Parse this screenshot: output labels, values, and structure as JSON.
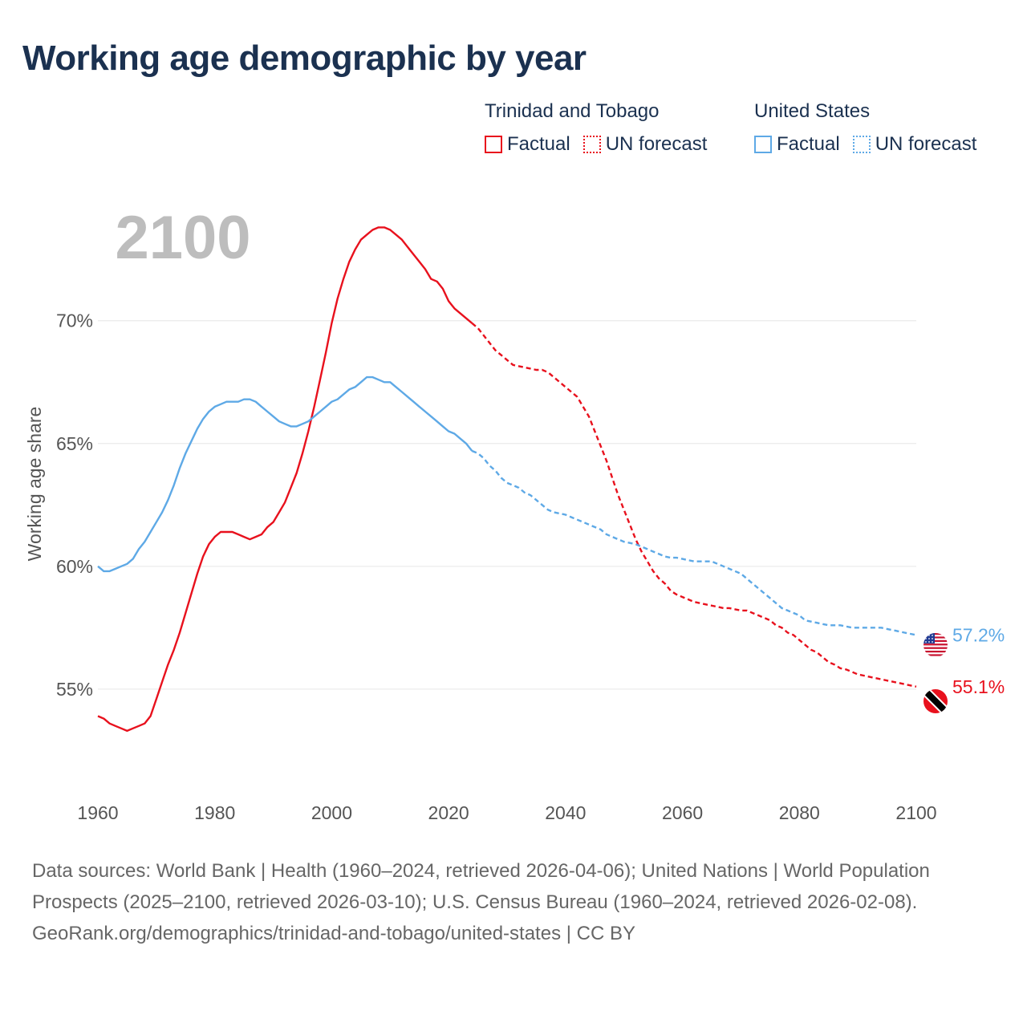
{
  "title": "Working age demographic by year",
  "legend": {
    "groups": [
      {
        "country": "Trinidad and Tobago",
        "color": "#e8111d",
        "factual_label": "Factual",
        "forecast_label": "UN forecast"
      },
      {
        "country": "United States",
        "color": "#5ea9e6",
        "factual_label": "Factual",
        "forecast_label": "UN forecast"
      }
    ]
  },
  "footer": {
    "sources": "Data sources: World Bank | Health (1960–2024, retrieved 2026-04-06); United Nations | World Population Prospects (2025–2100, retrieved 2026-03-10); U.S. Census Bureau (1960–2024, retrieved 2026-02-08).",
    "credit": "GeoRank.org/demographics/trinidad-and-tobago/united-states | CC BY"
  },
  "chart_data": {
    "type": "line",
    "year_watermark": "2100",
    "ylabel": "Working age share",
    "xlim": [
      1960,
      2100
    ],
    "ylim": [
      51.5,
      74.5
    ],
    "xticks": [
      1960,
      1980,
      2000,
      2020,
      2040,
      2060,
      2080,
      2100
    ],
    "xtick_labels": [
      "1960",
      "1980",
      "2000",
      "2020",
      "2040",
      "2060",
      "2080",
      "2100"
    ],
    "yticks": [
      55,
      60,
      65,
      70
    ],
    "ytick_labels": [
      "55%",
      "60%",
      "65%",
      "70%"
    ],
    "forecast_start": 2024,
    "series": [
      {
        "name": "Trinidad and Tobago",
        "color": "#e8111d",
        "end_label": "55.1%",
        "flag": "trinidad-and-tobago-flag",
        "points": [
          [
            1960,
            53.9
          ],
          [
            1961,
            53.8
          ],
          [
            1962,
            53.6
          ],
          [
            1963,
            53.5
          ],
          [
            1964,
            53.4
          ],
          [
            1965,
            53.3
          ],
          [
            1966,
            53.4
          ],
          [
            1967,
            53.5
          ],
          [
            1968,
            53.6
          ],
          [
            1969,
            53.9
          ],
          [
            1970,
            54.6
          ],
          [
            1971,
            55.3
          ],
          [
            1972,
            56.0
          ],
          [
            1973,
            56.6
          ],
          [
            1974,
            57.3
          ],
          [
            1975,
            58.1
          ],
          [
            1976,
            58.9
          ],
          [
            1977,
            59.7
          ],
          [
            1978,
            60.4
          ],
          [
            1979,
            60.9
          ],
          [
            1980,
            61.2
          ],
          [
            1981,
            61.4
          ],
          [
            1982,
            61.4
          ],
          [
            1983,
            61.4
          ],
          [
            1984,
            61.3
          ],
          [
            1985,
            61.2
          ],
          [
            1986,
            61.1
          ],
          [
            1987,
            61.2
          ],
          [
            1988,
            61.3
          ],
          [
            1989,
            61.6
          ],
          [
            1990,
            61.8
          ],
          [
            1991,
            62.2
          ],
          [
            1992,
            62.6
          ],
          [
            1993,
            63.2
          ],
          [
            1994,
            63.8
          ],
          [
            1995,
            64.6
          ],
          [
            1996,
            65.5
          ],
          [
            1997,
            66.5
          ],
          [
            1998,
            67.6
          ],
          [
            1999,
            68.7
          ],
          [
            2000,
            69.9
          ],
          [
            2001,
            70.9
          ],
          [
            2002,
            71.7
          ],
          [
            2003,
            72.4
          ],
          [
            2004,
            72.9
          ],
          [
            2005,
            73.3
          ],
          [
            2006,
            73.5
          ],
          [
            2007,
            73.7
          ],
          [
            2008,
            73.8
          ],
          [
            2009,
            73.8
          ],
          [
            2010,
            73.7
          ],
          [
            2011,
            73.5
          ],
          [
            2012,
            73.3
          ],
          [
            2013,
            73.0
          ],
          [
            2014,
            72.7
          ],
          [
            2015,
            72.4
          ],
          [
            2016,
            72.1
          ],
          [
            2017,
            71.7
          ],
          [
            2018,
            71.6
          ],
          [
            2019,
            71.3
          ],
          [
            2020,
            70.8
          ],
          [
            2021,
            70.5
          ],
          [
            2022,
            70.3
          ],
          [
            2023,
            70.1
          ],
          [
            2024,
            69.9
          ],
          [
            2025,
            69.7
          ],
          [
            2026,
            69.4
          ],
          [
            2027,
            69.1
          ],
          [
            2028,
            68.8
          ],
          [
            2029,
            68.6
          ],
          [
            2030,
            68.4
          ],
          [
            2031,
            68.2
          ],
          [
            2032,
            68.15
          ],
          [
            2033,
            68.1
          ],
          [
            2034,
            68.05
          ],
          [
            2035,
            68.0
          ],
          [
            2036,
            68.0
          ],
          [
            2037,
            67.9
          ],
          [
            2038,
            67.7
          ],
          [
            2039,
            67.5
          ],
          [
            2040,
            67.3
          ],
          [
            2041,
            67.1
          ],
          [
            2042,
            66.9
          ],
          [
            2043,
            66.5
          ],
          [
            2044,
            66.1
          ],
          [
            2045,
            65.5
          ],
          [
            2046,
            64.9
          ],
          [
            2047,
            64.3
          ],
          [
            2048,
            63.6
          ],
          [
            2049,
            62.9
          ],
          [
            2050,
            62.3
          ],
          [
            2051,
            61.7
          ],
          [
            2052,
            61.1
          ],
          [
            2053,
            60.6
          ],
          [
            2054,
            60.2
          ],
          [
            2055,
            59.8
          ],
          [
            2056,
            59.5
          ],
          [
            2057,
            59.3
          ],
          [
            2058,
            59.0
          ],
          [
            2059,
            58.85
          ],
          [
            2060,
            58.75
          ],
          [
            2061,
            58.65
          ],
          [
            2062,
            58.55
          ],
          [
            2063,
            58.5
          ],
          [
            2064,
            58.45
          ],
          [
            2065,
            58.4
          ],
          [
            2066,
            58.35
          ],
          [
            2067,
            58.3
          ],
          [
            2068,
            58.3
          ],
          [
            2069,
            58.25
          ],
          [
            2070,
            58.2
          ],
          [
            2071,
            58.2
          ],
          [
            2072,
            58.1
          ],
          [
            2073,
            58.0
          ],
          [
            2074,
            57.9
          ],
          [
            2075,
            57.8
          ],
          [
            2076,
            57.6
          ],
          [
            2077,
            57.5
          ],
          [
            2078,
            57.3
          ],
          [
            2079,
            57.2
          ],
          [
            2080,
            57.0
          ],
          [
            2081,
            56.8
          ],
          [
            2082,
            56.6
          ],
          [
            2083,
            56.5
          ],
          [
            2084,
            56.3
          ],
          [
            2085,
            56.1
          ],
          [
            2086,
            56.0
          ],
          [
            2087,
            55.85
          ],
          [
            2088,
            55.8
          ],
          [
            2089,
            55.7
          ],
          [
            2090,
            55.6
          ],
          [
            2091,
            55.55
          ],
          [
            2092,
            55.5
          ],
          [
            2093,
            55.45
          ],
          [
            2094,
            55.4
          ],
          [
            2095,
            55.35
          ],
          [
            2096,
            55.3
          ],
          [
            2097,
            55.25
          ],
          [
            2098,
            55.2
          ],
          [
            2099,
            55.15
          ],
          [
            2100,
            55.1
          ]
        ]
      },
      {
        "name": "United States",
        "color": "#5ea9e6",
        "end_label": "57.2%",
        "flag": "united-states-flag",
        "points": [
          [
            1960,
            60.0
          ],
          [
            1961,
            59.8
          ],
          [
            1962,
            59.8
          ],
          [
            1963,
            59.9
          ],
          [
            1964,
            60.0
          ],
          [
            1965,
            60.1
          ],
          [
            1966,
            60.3
          ],
          [
            1967,
            60.7
          ],
          [
            1968,
            61.0
          ],
          [
            1969,
            61.4
          ],
          [
            1970,
            61.8
          ],
          [
            1971,
            62.2
          ],
          [
            1972,
            62.7
          ],
          [
            1973,
            63.3
          ],
          [
            1974,
            64.0
          ],
          [
            1975,
            64.6
          ],
          [
            1976,
            65.1
          ],
          [
            1977,
            65.6
          ],
          [
            1978,
            66.0
          ],
          [
            1979,
            66.3
          ],
          [
            1980,
            66.5
          ],
          [
            1981,
            66.6
          ],
          [
            1982,
            66.7
          ],
          [
            1983,
            66.7
          ],
          [
            1984,
            66.7
          ],
          [
            1985,
            66.8
          ],
          [
            1986,
            66.8
          ],
          [
            1987,
            66.7
          ],
          [
            1988,
            66.5
          ],
          [
            1989,
            66.3
          ],
          [
            1990,
            66.1
          ],
          [
            1991,
            65.9
          ],
          [
            1992,
            65.8
          ],
          [
            1993,
            65.7
          ],
          [
            1994,
            65.7
          ],
          [
            1995,
            65.8
          ],
          [
            1996,
            65.9
          ],
          [
            1997,
            66.1
          ],
          [
            1998,
            66.3
          ],
          [
            1999,
            66.5
          ],
          [
            2000,
            66.7
          ],
          [
            2001,
            66.8
          ],
          [
            2002,
            67.0
          ],
          [
            2003,
            67.2
          ],
          [
            2004,
            67.3
          ],
          [
            2005,
            67.5
          ],
          [
            2006,
            67.7
          ],
          [
            2007,
            67.7
          ],
          [
            2008,
            67.6
          ],
          [
            2009,
            67.5
          ],
          [
            2010,
            67.5
          ],
          [
            2011,
            67.3
          ],
          [
            2012,
            67.1
          ],
          [
            2013,
            66.9
          ],
          [
            2014,
            66.7
          ],
          [
            2015,
            66.5
          ],
          [
            2016,
            66.3
          ],
          [
            2017,
            66.1
          ],
          [
            2018,
            65.9
          ],
          [
            2019,
            65.7
          ],
          [
            2020,
            65.5
          ],
          [
            2021,
            65.4
          ],
          [
            2022,
            65.2
          ],
          [
            2023,
            65.0
          ],
          [
            2024,
            64.7
          ],
          [
            2025,
            64.6
          ],
          [
            2026,
            64.4
          ],
          [
            2027,
            64.1
          ],
          [
            2028,
            63.9
          ],
          [
            2029,
            63.6
          ],
          [
            2030,
            63.4
          ],
          [
            2031,
            63.3
          ],
          [
            2032,
            63.2
          ],
          [
            2033,
            63.0
          ],
          [
            2034,
            62.9
          ],
          [
            2035,
            62.7
          ],
          [
            2036,
            62.5
          ],
          [
            2037,
            62.3
          ],
          [
            2038,
            62.2
          ],
          [
            2039,
            62.15
          ],
          [
            2040,
            62.1
          ],
          [
            2041,
            62.0
          ],
          [
            2042,
            61.9
          ],
          [
            2043,
            61.8
          ],
          [
            2044,
            61.7
          ],
          [
            2045,
            61.6
          ],
          [
            2046,
            61.5
          ],
          [
            2047,
            61.3
          ],
          [
            2048,
            61.2
          ],
          [
            2049,
            61.1
          ],
          [
            2050,
            61.0
          ],
          [
            2051,
            60.95
          ],
          [
            2052,
            60.9
          ],
          [
            2053,
            60.8
          ],
          [
            2054,
            60.7
          ],
          [
            2055,
            60.6
          ],
          [
            2056,
            60.5
          ],
          [
            2057,
            60.4
          ],
          [
            2058,
            60.35
          ],
          [
            2059,
            60.35
          ],
          [
            2060,
            60.3
          ],
          [
            2061,
            60.25
          ],
          [
            2062,
            60.2
          ],
          [
            2063,
            60.2
          ],
          [
            2064,
            60.2
          ],
          [
            2065,
            60.2
          ],
          [
            2066,
            60.1
          ],
          [
            2067,
            60.0
          ],
          [
            2068,
            59.9
          ],
          [
            2069,
            59.8
          ],
          [
            2070,
            59.7
          ],
          [
            2071,
            59.5
          ],
          [
            2072,
            59.3
          ],
          [
            2073,
            59.1
          ],
          [
            2074,
            58.9
          ],
          [
            2075,
            58.7
          ],
          [
            2076,
            58.5
          ],
          [
            2077,
            58.3
          ],
          [
            2078,
            58.2
          ],
          [
            2079,
            58.1
          ],
          [
            2080,
            58.0
          ],
          [
            2081,
            57.8
          ],
          [
            2082,
            57.75
          ],
          [
            2083,
            57.7
          ],
          [
            2084,
            57.65
          ],
          [
            2085,
            57.6
          ],
          [
            2086,
            57.6
          ],
          [
            2087,
            57.6
          ],
          [
            2088,
            57.55
          ],
          [
            2089,
            57.5
          ],
          [
            2090,
            57.5
          ],
          [
            2091,
            57.5
          ],
          [
            2092,
            57.5
          ],
          [
            2093,
            57.5
          ],
          [
            2094,
            57.5
          ],
          [
            2095,
            57.45
          ],
          [
            2096,
            57.4
          ],
          [
            2097,
            57.35
          ],
          [
            2098,
            57.3
          ],
          [
            2099,
            57.25
          ],
          [
            2100,
            57.2
          ]
        ]
      }
    ]
  }
}
